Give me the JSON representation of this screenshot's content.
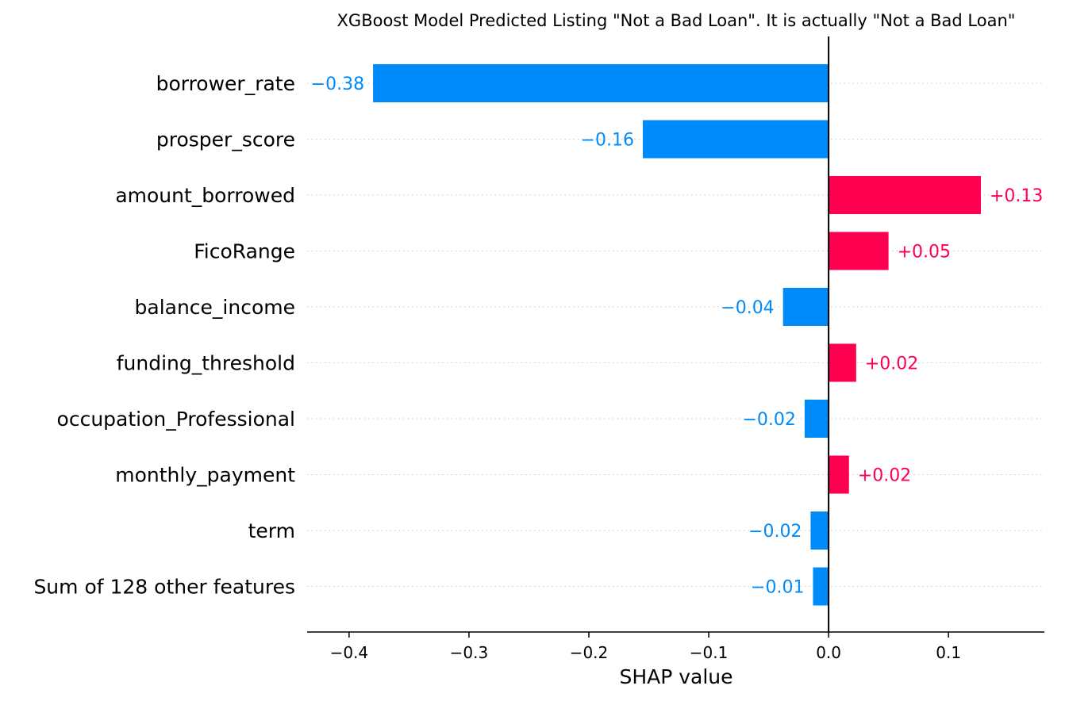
{
  "chart_data": {
    "type": "bar",
    "orientation": "horizontal",
    "title": "XGBoost Model Predicted Listing \"Not a Bad Loan\". It is actually \"Not a Bad Loan\"",
    "xlabel": "SHAP value",
    "ylabel": "",
    "xlim": [
      -0.435,
      0.18
    ],
    "xticks": [
      -0.4,
      -0.3,
      -0.2,
      -0.1,
      0.0,
      0.1
    ],
    "xtick_labels": [
      "−0.4",
      "−0.3",
      "−0.2",
      "−0.1",
      "0.0",
      "0.1"
    ],
    "grid": "dotted horizontal lines per feature",
    "zero_line": true,
    "colors": {
      "positive": "#ff0051",
      "negative": "#008bfb"
    },
    "categories": [
      "borrower_rate",
      "prosper_score",
      "amount_borrowed",
      "FicoRange",
      "balance_income",
      "funding_threshold",
      "occupation_Professional",
      "monthly_payment",
      "term",
      "Sum of 128 other features"
    ],
    "values": [
      -0.38,
      -0.155,
      0.127,
      0.05,
      -0.038,
      0.023,
      -0.02,
      0.017,
      -0.015,
      -0.013
    ],
    "value_labels": [
      "−0.38",
      "−0.16",
      "+0.13",
      "+0.05",
      "−0.04",
      "+0.02",
      "−0.02",
      "+0.02",
      "−0.02",
      "−0.01"
    ]
  }
}
